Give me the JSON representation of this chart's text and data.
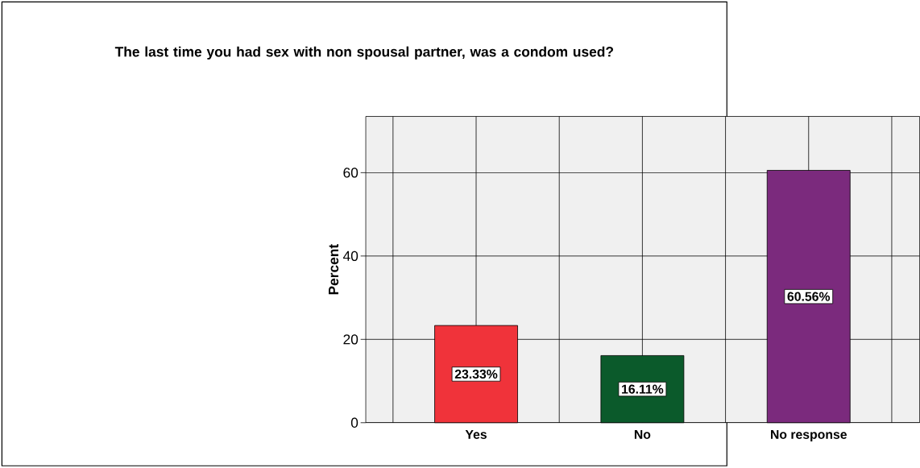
{
  "chart_data": {
    "type": "bar",
    "title": "The last time you had sex with non spousal partner, was a condom used?",
    "ylabel": "Percent",
    "categories": [
      "Yes",
      "No",
      "No response"
    ],
    "values": [
      23.33,
      16.11,
      60.56
    ],
    "colors": [
      "#f0333a",
      "#0b5a2b",
      "#7b2a7d"
    ],
    "value_labels": [
      "23.33%",
      "16.11%",
      "60.56%"
    ],
    "ylim": [
      0,
      73.5
    ],
    "yticks": [
      0,
      20,
      40,
      60
    ],
    "grid": true
  }
}
